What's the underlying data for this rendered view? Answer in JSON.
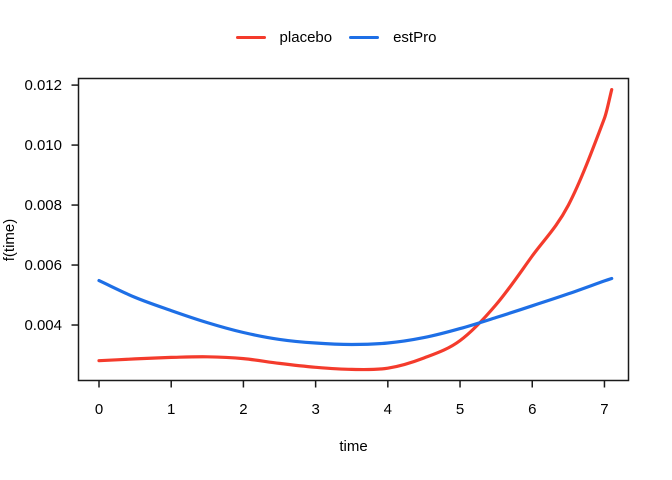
{
  "chart_data": {
    "type": "line",
    "title": "",
    "xlabel": "time",
    "ylabel": "f(time)",
    "xlim": [
      -0.284,
      7.333
    ],
    "ylim": [
      0.00215,
      0.01222
    ],
    "grid": false,
    "box": true,
    "x_ticks": {
      "values": [
        0,
        1,
        2,
        3,
        4,
        5,
        6,
        7
      ],
      "labels": [
        "0",
        "1",
        "2",
        "3",
        "4",
        "5",
        "6",
        "7"
      ]
    },
    "y_ticks": {
      "values": [
        0.004,
        0.006,
        0.008,
        0.01,
        0.012
      ],
      "labels": [
        "0.004",
        "0.006",
        "0.008",
        "0.010",
        "0.012"
      ]
    },
    "x": [
      0,
      0.5,
      1,
      1.5,
      2,
      2.5,
      3,
      3.5,
      4,
      4.5,
      5,
      5.5,
      6,
      6.5,
      7,
      7.1
    ],
    "series": [
      {
        "name": "placebo",
        "color": "#f43b2c",
        "values": [
          0.00281,
          0.00287,
          0.00292,
          0.00294,
          0.00288,
          0.00272,
          0.00259,
          0.00252,
          0.00256,
          0.0029,
          0.00348,
          0.00468,
          0.0063,
          0.008,
          0.0109,
          0.01185
        ]
      },
      {
        "name": "estPro",
        "color": "#1e6fe6",
        "values": [
          0.00548,
          0.00492,
          0.00448,
          0.00408,
          0.00375,
          0.00352,
          0.0034,
          0.00335,
          0.0034,
          0.00358,
          0.00388,
          0.00425,
          0.00464,
          0.00504,
          0.00547,
          0.00555
        ]
      }
    ],
    "legend": {
      "position": "top-center",
      "entries": [
        "placebo",
        "estPro"
      ]
    },
    "axis_color": "#1a1a1a"
  }
}
